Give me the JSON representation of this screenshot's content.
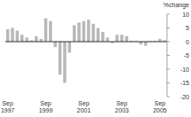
{
  "chart_data": {
    "type": "bar",
    "y_label": "%change",
    "categories": [
      "Sep 1997",
      null,
      null,
      null,
      null,
      null,
      null,
      null,
      "Sep 1999",
      null,
      null,
      null,
      null,
      null,
      null,
      null,
      "Sep 2001",
      null,
      null,
      null,
      null,
      null,
      null,
      null,
      "Sep 2003",
      null,
      null,
      null,
      null,
      null,
      null,
      null,
      "Sep 2005",
      null
    ],
    "values": [
      4.5,
      5,
      4,
      2.5,
      1.5,
      0.5,
      2,
      1,
      8.5,
      7.5,
      -2,
      -12,
      -15,
      -4,
      6,
      7,
      7.5,
      8,
      6.5,
      5,
      3.5,
      1.5,
      -0.5,
      2.5,
      2.5,
      2,
      0.3,
      0.2,
      -1,
      -1.5,
      0.2,
      0.3,
      1,
      0.5
    ],
    "color": "#b8b8b8",
    "ylim": [
      -20,
      10
    ],
    "yticks": [
      -20,
      -15,
      -10,
      -5,
      0,
      5,
      10
    ],
    "grid": false
  }
}
